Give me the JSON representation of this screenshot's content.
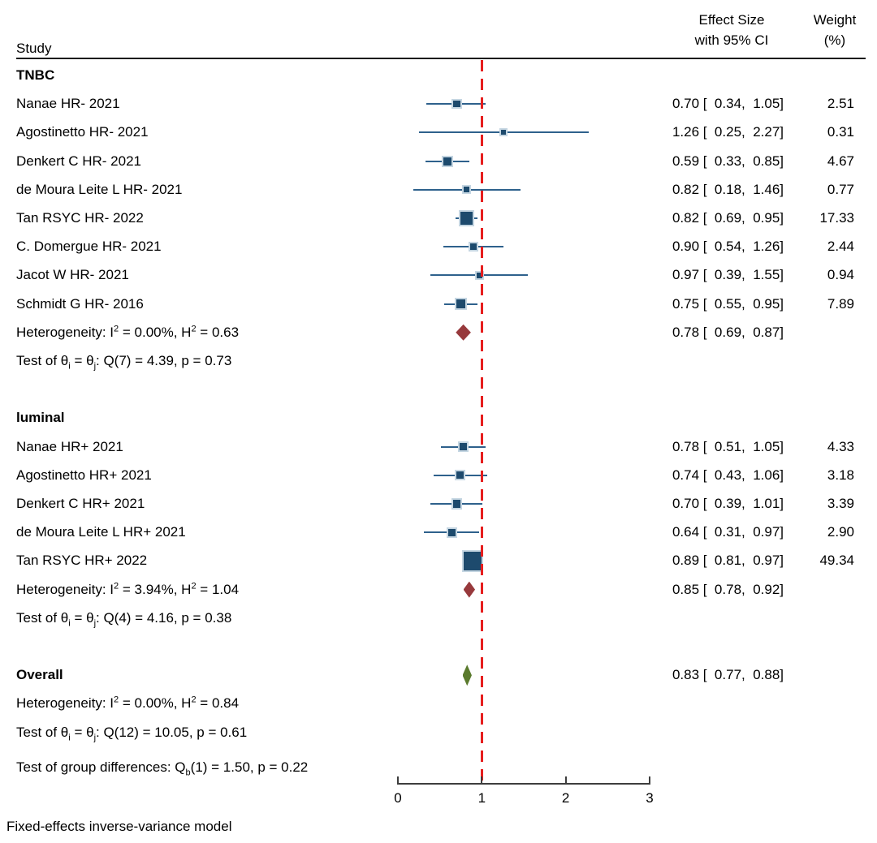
{
  "header": {
    "study_col": "Study",
    "effect_col_line1": "Effect Size",
    "effect_col_line2": "with 95% CI",
    "weight_col_line1": "Weight",
    "weight_col_line2": "(%)"
  },
  "footer": {
    "note": "Fixed-effects inverse-variance model"
  },
  "colors": {
    "marker_square": "#1d4a6d",
    "marker_halo": "#c5d6e2",
    "ci_line": "#2e618c",
    "ref_line": "#e61e1e",
    "diamond_group": "#97393c",
    "diamond_overall": "#5a7a2d",
    "axis": "#3d3d3d",
    "text": "#000000"
  },
  "chart_data": {
    "type": "forest",
    "x_ticks": [
      0,
      1,
      2,
      3
    ],
    "xlim": [
      0,
      3
    ],
    "ref_line": 1,
    "groups": [
      {
        "name": "TNBC",
        "studies": [
          {
            "label": "Nanae HR- 2021",
            "est": 0.7,
            "lo": 0.34,
            "hi": 1.05,
            "weight": 2.51,
            "effect_text": "0.70 [  0.34,  1.05]",
            "weight_text": "2.51"
          },
          {
            "label": "Agostinetto HR- 2021",
            "est": 1.26,
            "lo": 0.25,
            "hi": 2.27,
            "weight": 0.31,
            "effect_text": "1.26 [  0.25,  2.27]",
            "weight_text": "0.31"
          },
          {
            "label": "Denkert C HR- 2021",
            "est": 0.59,
            "lo": 0.33,
            "hi": 0.85,
            "weight": 4.67,
            "effect_text": "0.59 [  0.33,  0.85]",
            "weight_text": "4.67"
          },
          {
            "label": "de Moura Leite L HR- 2021",
            "est": 0.82,
            "lo": 0.18,
            "hi": 1.46,
            "weight": 0.77,
            "effect_text": "0.82 [  0.18,  1.46]",
            "weight_text": "0.77"
          },
          {
            "label": "Tan RSYC HR- 2022",
            "est": 0.82,
            "lo": 0.69,
            "hi": 0.95,
            "weight": 17.33,
            "effect_text": "0.82 [  0.69,  0.95]",
            "weight_text": "17.33"
          },
          {
            "label": "C. Domergue HR- 2021",
            "est": 0.9,
            "lo": 0.54,
            "hi": 1.26,
            "weight": 2.44,
            "effect_text": "0.90 [  0.54,  1.26]",
            "weight_text": "2.44"
          },
          {
            "label": "Jacot W HR- 2021",
            "est": 0.97,
            "lo": 0.39,
            "hi": 1.55,
            "weight": 0.94,
            "effect_text": "0.97 [  0.39,  1.55]",
            "weight_text": "0.94"
          },
          {
            "label": "Schmidt G HR- 2016",
            "est": 0.75,
            "lo": 0.55,
            "hi": 0.95,
            "weight": 7.89,
            "effect_text": "0.75 [  0.55,  0.95]",
            "weight_text": "7.89"
          }
        ],
        "summary": {
          "est": 0.78,
          "lo": 0.69,
          "hi": 0.87,
          "effect_text": "0.78 [  0.69,  0.87]"
        },
        "heterogeneity": [
          {
            "t": "Heterogeneity: I"
          },
          {
            "sup": "2"
          },
          {
            "t": " = 0.00%, H"
          },
          {
            "sup": "2"
          },
          {
            "t": " = 0.63"
          }
        ],
        "test": [
          {
            "t": "Test of θ"
          },
          {
            "sub": "i"
          },
          {
            "t": " = θ"
          },
          {
            "sub": "j"
          },
          {
            "t": ": Q(7) = 4.39, p = 0.73"
          }
        ]
      },
      {
        "name": "luminal",
        "studies": [
          {
            "label": "Nanae HR+ 2021",
            "est": 0.78,
            "lo": 0.51,
            "hi": 1.05,
            "weight": 4.33,
            "effect_text": "0.78 [  0.51,  1.05]",
            "weight_text": "4.33"
          },
          {
            "label": "Agostinetto HR+ 2021",
            "est": 0.74,
            "lo": 0.43,
            "hi": 1.06,
            "weight": 3.18,
            "effect_text": "0.74 [  0.43,  1.06]",
            "weight_text": "3.18"
          },
          {
            "label": "Denkert C HR+ 2021",
            "est": 0.7,
            "lo": 0.39,
            "hi": 1.01,
            "weight": 3.39,
            "effect_text": "0.70 [  0.39,  1.01]",
            "weight_text": "3.39"
          },
          {
            "label": "de Moura Leite L HR+ 2021",
            "est": 0.64,
            "lo": 0.31,
            "hi": 0.97,
            "weight": 2.9,
            "effect_text": "0.64 [  0.31,  0.97]",
            "weight_text": "2.90"
          },
          {
            "label": "Tan RSYC HR+ 2022",
            "est": 0.89,
            "lo": 0.81,
            "hi": 0.97,
            "weight": 49.34,
            "effect_text": "0.89 [  0.81,  0.97]",
            "weight_text": "49.34"
          }
        ],
        "summary": {
          "est": 0.85,
          "lo": 0.78,
          "hi": 0.92,
          "effect_text": "0.85 [  0.78,  0.92]"
        },
        "heterogeneity": [
          {
            "t": "Heterogeneity: I"
          },
          {
            "sup": "2"
          },
          {
            "t": " = 3.94%, H"
          },
          {
            "sup": "2"
          },
          {
            "t": " = 1.04"
          }
        ],
        "test": [
          {
            "t": "Test of θ"
          },
          {
            "sub": "i"
          },
          {
            "t": " = θ"
          },
          {
            "sub": "j"
          },
          {
            "t": ": Q(4) = 4.16, p = 0.38"
          }
        ]
      }
    ],
    "overall": {
      "label": "Overall",
      "est": 0.83,
      "lo": 0.77,
      "hi": 0.88,
      "effect_text": "0.83 [  0.77,  0.88]",
      "heterogeneity": [
        {
          "t": "Heterogeneity: I"
        },
        {
          "sup": "2"
        },
        {
          "t": " = 0.00%, H"
        },
        {
          "sup": "2"
        },
        {
          "t": " = 0.84"
        }
      ],
      "test": [
        {
          "t": "Test of θ"
        },
        {
          "sub": "i"
        },
        {
          "t": " = θ"
        },
        {
          "sub": "j"
        },
        {
          "t": ": Q(12) = 10.05, p = 0.61"
        }
      ]
    },
    "group_difference": [
      {
        "t": "Test of group differences: Q"
      },
      {
        "sub": "b"
      },
      {
        "t": "(1) = 1.50, p = 0.22"
      }
    ]
  }
}
